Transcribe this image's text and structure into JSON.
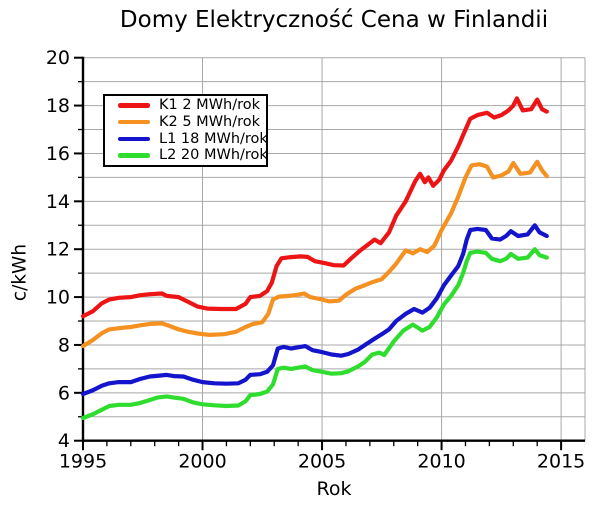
{
  "chart_data": {
    "type": "line",
    "title": "Domy Elektryczność Cena w Finlandii",
    "xlabel": "Rok",
    "ylabel": "c/kWh",
    "xlim": [
      1995,
      2016
    ],
    "ylim": [
      4,
      20
    ],
    "x_major_ticks": [
      1995,
      2000,
      2005,
      2010,
      2015
    ],
    "y_major_ticks": [
      4,
      6,
      8,
      10,
      12,
      14,
      16,
      18,
      20
    ],
    "grid": true,
    "grid_color": "#a8a8a8",
    "axis_color": "#000000",
    "legend_position": "upper left",
    "series": [
      {
        "name": "K1 2 MWh/rok",
        "color": "#ec1414",
        "points": [
          [
            1995.0,
            9.2
          ],
          [
            1995.4,
            9.4
          ],
          [
            1995.8,
            9.75
          ],
          [
            1996.1,
            9.9
          ],
          [
            1996.5,
            9.97
          ],
          [
            1997.0,
            10.0
          ],
          [
            1997.4,
            10.08
          ],
          [
            1997.8,
            10.12
          ],
          [
            1998.3,
            10.15
          ],
          [
            1998.5,
            10.05
          ],
          [
            1999.0,
            10.0
          ],
          [
            1999.4,
            9.8
          ],
          [
            1999.8,
            9.6
          ],
          [
            2000.2,
            9.52
          ],
          [
            2000.8,
            9.5
          ],
          [
            2001.4,
            9.5
          ],
          [
            2001.8,
            9.72
          ],
          [
            2002.0,
            10.0
          ],
          [
            2002.4,
            10.05
          ],
          [
            2002.7,
            10.25
          ],
          [
            2002.9,
            10.6
          ],
          [
            2003.1,
            11.3
          ],
          [
            2003.3,
            11.62
          ],
          [
            2003.7,
            11.67
          ],
          [
            2004.1,
            11.7
          ],
          [
            2004.4,
            11.68
          ],
          [
            2004.7,
            11.5
          ],
          [
            2005.1,
            11.42
          ],
          [
            2005.5,
            11.33
          ],
          [
            2005.9,
            11.32
          ],
          [
            2006.2,
            11.6
          ],
          [
            2006.6,
            11.95
          ],
          [
            2007.0,
            12.25
          ],
          [
            2007.2,
            12.4
          ],
          [
            2007.45,
            12.25
          ],
          [
            2007.8,
            12.7
          ],
          [
            2008.1,
            13.4
          ],
          [
            2008.5,
            14.0
          ],
          [
            2008.9,
            14.85
          ],
          [
            2009.1,
            15.15
          ],
          [
            2009.3,
            14.8
          ],
          [
            2009.45,
            15.0
          ],
          [
            2009.65,
            14.65
          ],
          [
            2009.9,
            14.9
          ],
          [
            2010.1,
            15.3
          ],
          [
            2010.4,
            15.7
          ],
          [
            2010.7,
            16.3
          ],
          [
            2011.0,
            17.0
          ],
          [
            2011.2,
            17.45
          ],
          [
            2011.5,
            17.6
          ],
          [
            2011.9,
            17.7
          ],
          [
            2012.2,
            17.5
          ],
          [
            2012.5,
            17.6
          ],
          [
            2012.8,
            17.8
          ],
          [
            2013.0,
            18.0
          ],
          [
            2013.15,
            18.3
          ],
          [
            2013.4,
            17.8
          ],
          [
            2013.75,
            17.85
          ],
          [
            2014.0,
            18.25
          ],
          [
            2014.2,
            17.85
          ],
          [
            2014.4,
            17.75
          ]
        ]
      },
      {
        "name": "K2 5 MWh/rok",
        "color": "#f59120",
        "points": [
          [
            1995.0,
            7.95
          ],
          [
            1995.4,
            8.2
          ],
          [
            1995.8,
            8.5
          ],
          [
            1996.1,
            8.65
          ],
          [
            1996.5,
            8.7
          ],
          [
            1997.0,
            8.75
          ],
          [
            1997.4,
            8.82
          ],
          [
            1997.8,
            8.88
          ],
          [
            1998.3,
            8.9
          ],
          [
            1998.6,
            8.8
          ],
          [
            1999.0,
            8.65
          ],
          [
            1999.4,
            8.55
          ],
          [
            1999.8,
            8.48
          ],
          [
            2000.3,
            8.42
          ],
          [
            2000.9,
            8.45
          ],
          [
            2001.4,
            8.55
          ],
          [
            2001.8,
            8.75
          ],
          [
            2002.1,
            8.87
          ],
          [
            2002.5,
            8.95
          ],
          [
            2002.75,
            9.3
          ],
          [
            2002.95,
            9.9
          ],
          [
            2003.2,
            10.02
          ],
          [
            2003.6,
            10.05
          ],
          [
            2004.0,
            10.1
          ],
          [
            2004.25,
            10.15
          ],
          [
            2004.5,
            10.0
          ],
          [
            2004.9,
            9.92
          ],
          [
            2005.3,
            9.82
          ],
          [
            2005.7,
            9.85
          ],
          [
            2006.0,
            10.1
          ],
          [
            2006.4,
            10.35
          ],
          [
            2006.8,
            10.5
          ],
          [
            2007.1,
            10.62
          ],
          [
            2007.5,
            10.75
          ],
          [
            2007.8,
            11.05
          ],
          [
            2008.1,
            11.4
          ],
          [
            2008.5,
            11.95
          ],
          [
            2008.8,
            11.83
          ],
          [
            2009.1,
            12.0
          ],
          [
            2009.4,
            11.88
          ],
          [
            2009.7,
            12.15
          ],
          [
            2010.0,
            12.8
          ],
          [
            2010.4,
            13.5
          ],
          [
            2010.7,
            14.2
          ],
          [
            2011.0,
            15.0
          ],
          [
            2011.25,
            15.5
          ],
          [
            2011.6,
            15.55
          ],
          [
            2011.9,
            15.45
          ],
          [
            2012.15,
            15.0
          ],
          [
            2012.5,
            15.08
          ],
          [
            2012.8,
            15.25
          ],
          [
            2013.0,
            15.6
          ],
          [
            2013.3,
            15.15
          ],
          [
            2013.7,
            15.2
          ],
          [
            2014.0,
            15.65
          ],
          [
            2014.2,
            15.3
          ],
          [
            2014.4,
            15.05
          ]
        ]
      },
      {
        "name": "L1 18 MWh/rok",
        "color": "#1414cc",
        "points": [
          [
            1995.0,
            5.95
          ],
          [
            1995.4,
            6.1
          ],
          [
            1995.8,
            6.3
          ],
          [
            1996.1,
            6.4
          ],
          [
            1996.5,
            6.45
          ],
          [
            1997.0,
            6.45
          ],
          [
            1997.4,
            6.58
          ],
          [
            1997.8,
            6.68
          ],
          [
            1998.2,
            6.72
          ],
          [
            1998.5,
            6.75
          ],
          [
            1998.8,
            6.7
          ],
          [
            1999.2,
            6.68
          ],
          [
            1999.6,
            6.55
          ],
          [
            2000.0,
            6.45
          ],
          [
            2000.5,
            6.4
          ],
          [
            2001.0,
            6.38
          ],
          [
            2001.5,
            6.4
          ],
          [
            2001.8,
            6.55
          ],
          [
            2002.0,
            6.75
          ],
          [
            2002.4,
            6.78
          ],
          [
            2002.7,
            6.88
          ],
          [
            2002.95,
            7.15
          ],
          [
            2003.15,
            7.85
          ],
          [
            2003.4,
            7.92
          ],
          [
            2003.7,
            7.85
          ],
          [
            2004.0,
            7.9
          ],
          [
            2004.3,
            7.95
          ],
          [
            2004.6,
            7.78
          ],
          [
            2005.0,
            7.7
          ],
          [
            2005.4,
            7.6
          ],
          [
            2005.8,
            7.55
          ],
          [
            2006.1,
            7.62
          ],
          [
            2006.5,
            7.8
          ],
          [
            2006.8,
            8.0
          ],
          [
            2007.1,
            8.2
          ],
          [
            2007.5,
            8.45
          ],
          [
            2007.8,
            8.65
          ],
          [
            2008.1,
            9.0
          ],
          [
            2008.5,
            9.3
          ],
          [
            2008.85,
            9.5
          ],
          [
            2009.2,
            9.35
          ],
          [
            2009.5,
            9.55
          ],
          [
            2009.8,
            9.95
          ],
          [
            2010.1,
            10.5
          ],
          [
            2010.4,
            10.9
          ],
          [
            2010.7,
            11.3
          ],
          [
            2010.9,
            11.8
          ],
          [
            2011.05,
            12.4
          ],
          [
            2011.2,
            12.8
          ],
          [
            2011.5,
            12.85
          ],
          [
            2011.85,
            12.8
          ],
          [
            2012.1,
            12.45
          ],
          [
            2012.45,
            12.4
          ],
          [
            2012.7,
            12.55
          ],
          [
            2012.9,
            12.75
          ],
          [
            2013.2,
            12.55
          ],
          [
            2013.6,
            12.62
          ],
          [
            2013.9,
            13.0
          ],
          [
            2014.1,
            12.7
          ],
          [
            2014.4,
            12.55
          ]
        ]
      },
      {
        "name": "L2 20 MWh/rok",
        "color": "#2fdd2f",
        "points": [
          [
            1995.0,
            4.95
          ],
          [
            1995.4,
            5.1
          ],
          [
            1995.8,
            5.3
          ],
          [
            1996.1,
            5.45
          ],
          [
            1996.5,
            5.5
          ],
          [
            1997.0,
            5.5
          ],
          [
            1997.4,
            5.58
          ],
          [
            1997.8,
            5.7
          ],
          [
            1998.1,
            5.8
          ],
          [
            1998.5,
            5.85
          ],
          [
            1998.8,
            5.8
          ],
          [
            1999.2,
            5.75
          ],
          [
            1999.6,
            5.6
          ],
          [
            2000.0,
            5.52
          ],
          [
            2000.5,
            5.48
          ],
          [
            2001.0,
            5.45
          ],
          [
            2001.5,
            5.47
          ],
          [
            2001.8,
            5.65
          ],
          [
            2002.0,
            5.9
          ],
          [
            2002.4,
            5.95
          ],
          [
            2002.7,
            6.05
          ],
          [
            2002.95,
            6.35
          ],
          [
            2003.15,
            7.0
          ],
          [
            2003.4,
            7.05
          ],
          [
            2003.7,
            7.0
          ],
          [
            2004.0,
            7.05
          ],
          [
            2004.3,
            7.1
          ],
          [
            2004.6,
            6.95
          ],
          [
            2005.0,
            6.88
          ],
          [
            2005.4,
            6.8
          ],
          [
            2005.8,
            6.82
          ],
          [
            2006.1,
            6.9
          ],
          [
            2006.5,
            7.1
          ],
          [
            2006.8,
            7.3
          ],
          [
            2007.1,
            7.6
          ],
          [
            2007.4,
            7.68
          ],
          [
            2007.6,
            7.58
          ],
          [
            2008.0,
            8.15
          ],
          [
            2008.4,
            8.6
          ],
          [
            2008.8,
            8.85
          ],
          [
            2009.2,
            8.6
          ],
          [
            2009.5,
            8.75
          ],
          [
            2009.8,
            9.15
          ],
          [
            2010.1,
            9.7
          ],
          [
            2010.4,
            10.05
          ],
          [
            2010.7,
            10.5
          ],
          [
            2010.9,
            11.0
          ],
          [
            2011.05,
            11.5
          ],
          [
            2011.2,
            11.85
          ],
          [
            2011.5,
            11.9
          ],
          [
            2011.85,
            11.85
          ],
          [
            2012.1,
            11.6
          ],
          [
            2012.45,
            11.5
          ],
          [
            2012.7,
            11.6
          ],
          [
            2012.9,
            11.8
          ],
          [
            2013.2,
            11.6
          ],
          [
            2013.6,
            11.65
          ],
          [
            2013.9,
            12.0
          ],
          [
            2014.1,
            11.75
          ],
          [
            2014.4,
            11.65
          ]
        ]
      }
    ]
  }
}
